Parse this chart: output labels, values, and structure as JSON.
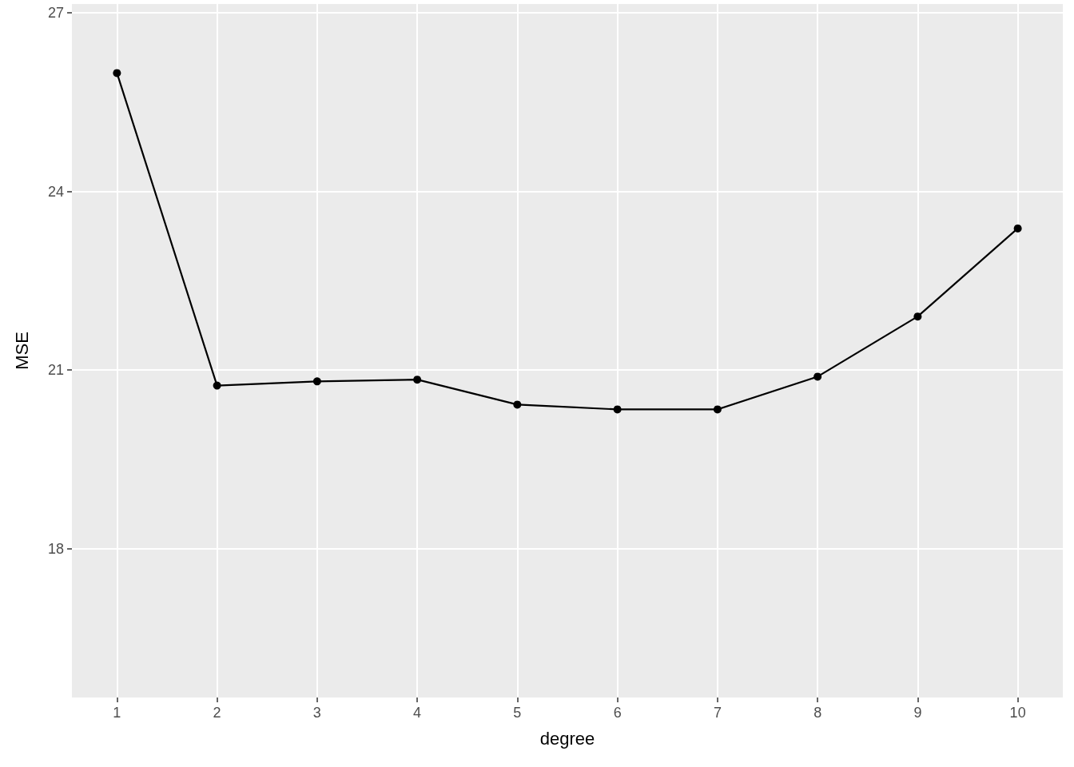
{
  "chart_data": {
    "type": "line",
    "xlabel": "degree",
    "ylabel": "MSE",
    "x": [
      1,
      2,
      3,
      4,
      5,
      6,
      7,
      8,
      9,
      10
    ],
    "series": [
      {
        "color": "#000000",
        "values": [
          25.99,
          20.74,
          20.81,
          20.84,
          20.42,
          20.34,
          20.34,
          20.89,
          21.9,
          23.38
        ]
      }
    ],
    "xlim": [
      0.55,
      10.45
    ],
    "xticks": [
      1,
      2,
      3,
      4,
      5,
      6,
      7,
      8,
      9,
      10
    ],
    "ylim": [
      15.5,
      27.15
    ],
    "yticks": [
      18,
      21,
      24,
      27
    ],
    "grid": true,
    "marker": "circle",
    "line_style": "solid"
  }
}
